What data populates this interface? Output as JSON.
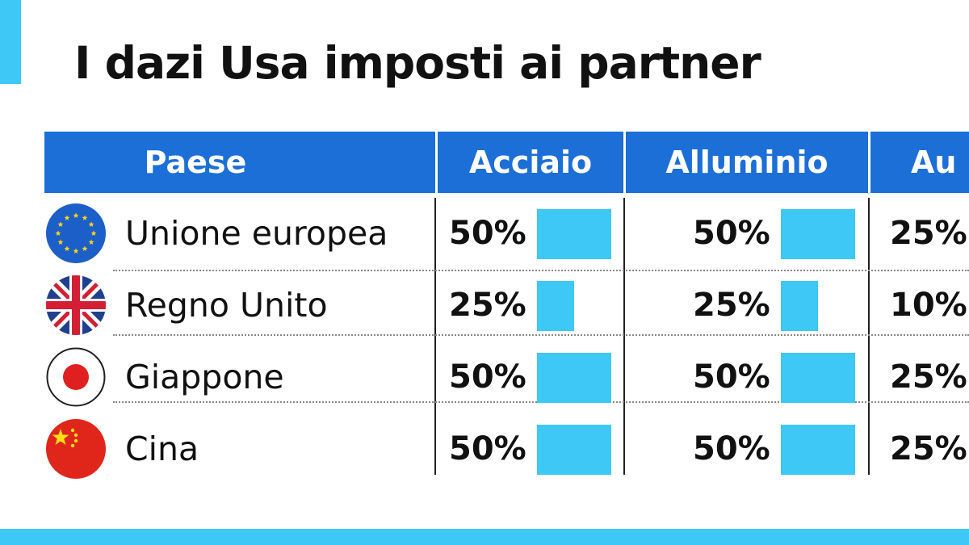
{
  "title": "I dazi Usa imposti ai partner",
  "colors": {
    "accent": "#3ec8f5",
    "header": "#1c6fd6",
    "bar": "#3ec8f5"
  },
  "headers": [
    "Paese",
    "Acciaio",
    "Alluminio",
    "Au"
  ],
  "chart_data": {
    "type": "table",
    "title": "I dazi Usa imposti ai partner",
    "columns": [
      "Paese",
      "Acciaio",
      "Alluminio",
      "Au"
    ],
    "rows": [
      {
        "country": "Unione europea",
        "flag": "eu-flag-icon",
        "acciaio": "50%",
        "alluminio": "50%",
        "auto": "25%",
        "acciaio_value": 50,
        "alluminio_value": 50
      },
      {
        "country": "Regno Unito",
        "flag": "uk-flag-icon",
        "acciaio": "25%",
        "alluminio": "25%",
        "auto": "10%",
        "acciaio_value": 25,
        "alluminio_value": 25
      },
      {
        "country": "Giappone",
        "flag": "japan-flag-icon",
        "acciaio": "50%",
        "alluminio": "50%",
        "auto": "25%",
        "acciaio_value": 50,
        "alluminio_value": 50
      },
      {
        "country": "Cina",
        "flag": "china-flag-icon",
        "acciaio": "50%",
        "alluminio": "50%",
        "auto": "25%",
        "acciaio_value": 50,
        "alluminio_value": 50
      }
    ]
  }
}
